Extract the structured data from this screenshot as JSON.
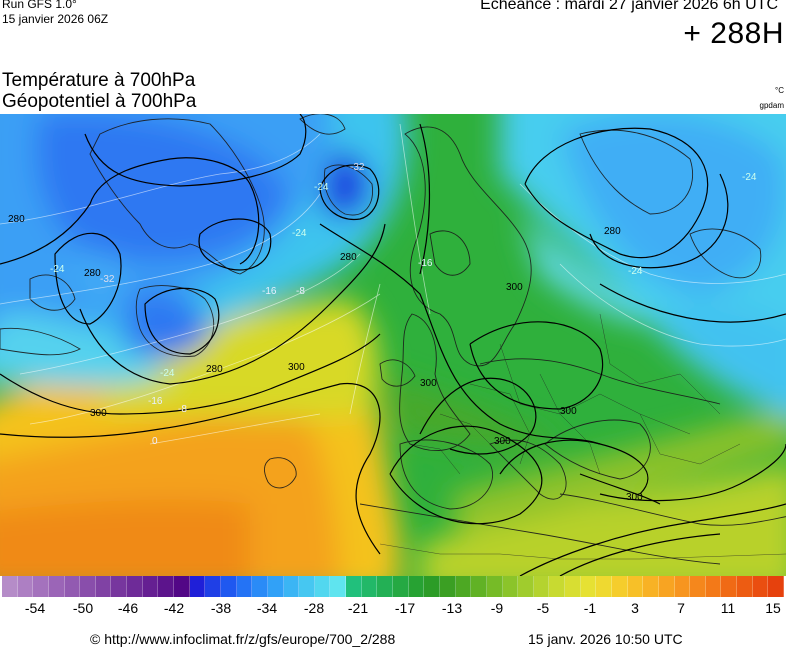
{
  "header": {
    "run_label": "Run GFS 1.0°",
    "run_date": "15 janvier 2026 06Z",
    "echeance": "Echéance : mardi 27 janvier 2026 6h UTC",
    "lead_time": "+ 288H"
  },
  "titles": {
    "temperature": "Température à 700hPa",
    "geopotential": "Géopotentiel à 700hPa",
    "unit_temp": "°C",
    "unit_geo": "gpdam"
  },
  "map": {
    "contour_labels": [
      {
        "id": "lbl-280-a",
        "text": "280"
      },
      {
        "id": "lbl-280-b",
        "text": "280"
      },
      {
        "id": "lbl-280-c",
        "text": "280"
      },
      {
        "id": "lbl-280-d",
        "text": "280"
      },
      {
        "id": "lbl-280-e",
        "text": "280"
      },
      {
        "id": "lbl-300-a",
        "text": "300"
      },
      {
        "id": "lbl-300-b",
        "text": "300"
      },
      {
        "id": "lbl-300-c",
        "text": "300"
      },
      {
        "id": "lbl-300-d",
        "text": "300"
      },
      {
        "id": "lbl-300-e",
        "text": "300"
      },
      {
        "id": "lbl-300-f",
        "text": "300"
      },
      {
        "id": "lbl-300-g",
        "text": "300"
      },
      {
        "id": "lbl-t-32-a",
        "text": "-32"
      },
      {
        "id": "lbl-t-32-b",
        "text": "-32"
      },
      {
        "id": "lbl-t-24-a",
        "text": "-24"
      },
      {
        "id": "lbl-t-24-b",
        "text": "-24"
      },
      {
        "id": "lbl-t-24-c",
        "text": "-24"
      },
      {
        "id": "lbl-t-24-d",
        "text": "-24"
      },
      {
        "id": "lbl-t-24-e",
        "text": "-24"
      },
      {
        "id": "lbl-t-24-f",
        "text": "-24"
      },
      {
        "id": "lbl-t-16-a",
        "text": "-16"
      },
      {
        "id": "lbl-t-16-b",
        "text": "-16"
      },
      {
        "id": "lbl-t-16-c",
        "text": "-16"
      },
      {
        "id": "lbl-t-8-a",
        "text": "-8"
      },
      {
        "id": "lbl-t-8-b",
        "text": "-8"
      },
      {
        "id": "lbl-t-0",
        "text": "0"
      }
    ]
  },
  "colorbar": {
    "colors": [
      "#b58cc8",
      "#ad7fc3",
      "#a472bd",
      "#9b65b7",
      "#925ab1",
      "#894eab",
      "#8042a4",
      "#77369e",
      "#6e2b98",
      "#651f92",
      "#5c148c",
      "#520786",
      "#1f1fd8",
      "#1f3fe6",
      "#1f58f0",
      "#2473f5",
      "#2a8bf7",
      "#31a1f7",
      "#3bb5f4",
      "#46c7f1",
      "#52d7ef",
      "#5fe4ef",
      "#21c07c",
      "#22b868",
      "#23b055",
      "#25a943",
      "#27a233",
      "#2c9c27",
      "#3b9f23",
      "#4da823",
      "#61b225",
      "#76bb27",
      "#8bc42a",
      "#a0cc2d",
      "#b4d32f",
      "#c8da31",
      "#d8de32",
      "#e6e133",
      "#efd930",
      "#f5cd2c",
      "#f7c028",
      "#f8b225",
      "#f8a422",
      "#f7951f",
      "#f5871c",
      "#f37918",
      "#f06a15",
      "#ed5c12",
      "#ea4e10",
      "#e6410d"
    ],
    "labels": [
      "-54",
      "-50",
      "-46",
      "-42",
      "-38",
      "-34",
      "-28",
      "-21",
      "-17",
      "-13",
      "-9",
      "-5",
      "-1",
      "3",
      "7",
      "11",
      "15"
    ]
  },
  "footer": {
    "copyright": "© http://www.infoclimat.fr/z/gfs/europe/700_2/288",
    "timestamp": "15 janv. 2026 10:50 UTC"
  }
}
